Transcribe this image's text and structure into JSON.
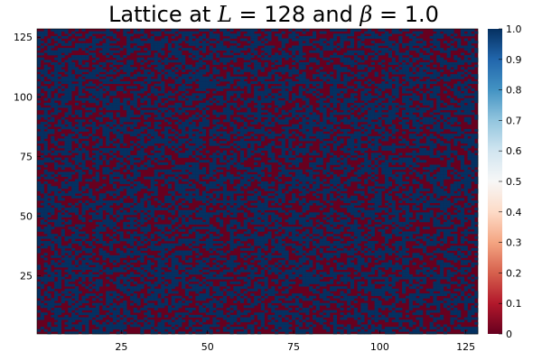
{
  "chart_data": {
    "type": "heatmap",
    "title": {
      "prefix": "Lattice at ",
      "L_symbol": "L",
      "L_part": " = 128 and ",
      "beta_symbol": "β",
      "beta_part": " = 1.0"
    },
    "L": 128,
    "beta": 1.0,
    "grid_size": [
      128,
      128
    ],
    "values_note": "",
    "value_set": [
      0,
      1
    ],
    "fraction_of_ones": 0.5,
    "x_range": [
      1,
      128
    ],
    "y_range": [
      1,
      128
    ],
    "x_ticks": [
      25,
      50,
      75,
      100,
      125
    ],
    "y_ticks": [
      25,
      50,
      75,
      100,
      125
    ],
    "colorbar": {
      "range": [
        0,
        1
      ],
      "ticks": [
        "0",
        "0.1",
        "0.2",
        "0.3",
        "0.4",
        "0.5",
        "0.6",
        "0.7",
        "0.8",
        "0.9",
        "1.0"
      ],
      "colormap": "RdBu",
      "stops": [
        "#67001f",
        "#b2182b",
        "#d6604d",
        "#f4a582",
        "#fddbc7",
        "#f7f7f7",
        "#d1e5f0",
        "#92c5de",
        "#4393c3",
        "#2166ac",
        "#053061"
      ]
    },
    "colors": {
      "zero": "#67001f",
      "one": "#053061"
    },
    "grid": false,
    "legend": "colorbar-right"
  }
}
